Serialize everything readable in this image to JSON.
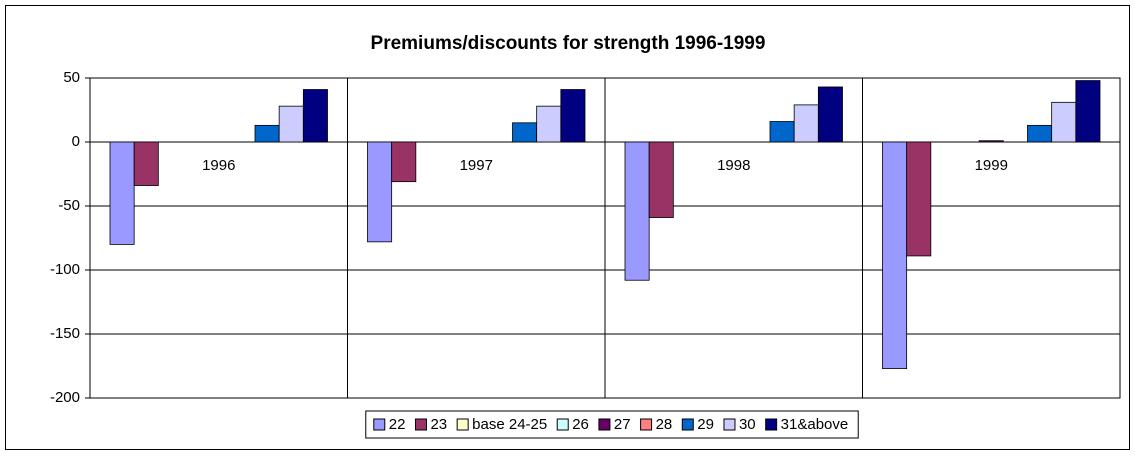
{
  "chart_data": {
    "type": "bar",
    "title": "Premiums/discounts for strength 1996-1999",
    "categories": [
      "1996",
      "1997",
      "1998",
      "1999"
    ],
    "series": [
      {
        "name": "22",
        "color": "#9999ff",
        "values": [
          -80,
          -78,
          -108,
          -177
        ]
      },
      {
        "name": "23",
        "color": "#993366",
        "values": [
          -34,
          -31,
          -59,
          -89
        ]
      },
      {
        "name": "base 24-25",
        "color": "#ffffcc",
        "values": [
          0,
          0,
          0,
          0
        ]
      },
      {
        "name": "26",
        "color": "#ccffff",
        "values": [
          0,
          0,
          0,
          0
        ]
      },
      {
        "name": "27",
        "color": "#660066",
        "values": [
          0,
          0,
          0,
          1
        ]
      },
      {
        "name": "28",
        "color": "#ff8080",
        "values": [
          0,
          0,
          0,
          0
        ]
      },
      {
        "name": "29",
        "color": "#0066cc",
        "values": [
          13,
          15,
          16,
          13
        ]
      },
      {
        "name": "30",
        "color": "#ccccff",
        "values": [
          28,
          28,
          29,
          31
        ]
      },
      {
        "name": "31&above",
        "color": "#000080",
        "values": [
          41,
          41,
          43,
          48
        ]
      }
    ],
    "ylim": [
      -200,
      50
    ],
    "yticks": [
      -200,
      -150,
      -100,
      -50,
      0,
      50
    ],
    "grid": true
  }
}
